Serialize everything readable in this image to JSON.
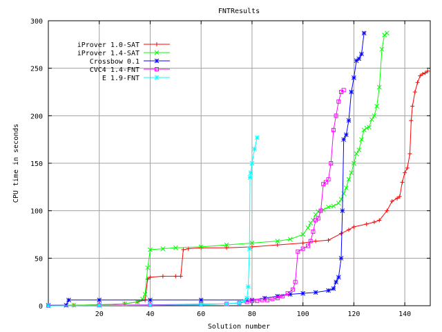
{
  "chart_data": {
    "type": "line",
    "title": "FNTResults",
    "xlabel": "Solution number",
    "ylabel": "CPU time in seconds",
    "xlim": [
      0,
      150
    ],
    "ylim": [
      0,
      300
    ],
    "xticks": [
      20,
      40,
      60,
      80,
      100,
      120,
      140
    ],
    "yticks": [
      0,
      50,
      100,
      150,
      200,
      250,
      300
    ],
    "grid": true,
    "legend_position": "top-left",
    "series": [
      {
        "name": "iProver 1.0-SAT",
        "color": "#ff0000",
        "marker": "plus",
        "x": [
          0,
          10,
          20,
          30,
          35,
          38,
          39,
          40,
          45,
          50,
          52,
          53,
          55,
          60,
          70,
          80,
          90,
          100,
          105,
          110,
          115,
          118,
          120,
          125,
          128,
          130,
          133,
          135,
          137,
          138,
          139,
          140,
          141,
          142,
          142.5,
          143,
          144,
          145,
          146,
          147,
          148,
          149
        ],
        "y": [
          0.3,
          0.5,
          1,
          2,
          4,
          6,
          28,
          30,
          31,
          31,
          31,
          59,
          60,
          61,
          61,
          62,
          64,
          66,
          68,
          69,
          76,
          80,
          83,
          86,
          88,
          90,
          100,
          110,
          113,
          115,
          130,
          140,
          145,
          160,
          195,
          210,
          225,
          235,
          242,
          244,
          245,
          247
        ]
      },
      {
        "name": "iProver 1.4-SAT",
        "color": "#00ff00",
        "marker": "cross",
        "x": [
          0,
          10,
          20,
          30,
          35,
          37,
          38,
          39,
          40,
          45,
          50,
          60,
          70,
          80,
          90,
          95,
          100,
          102,
          103,
          104,
          105,
          106,
          108,
          110,
          112,
          114,
          115,
          116,
          117,
          118,
          119,
          120,
          121,
          122,
          123,
          124,
          125,
          126,
          127,
          128,
          129,
          130,
          131,
          132,
          133
        ],
        "y": [
          0.3,
          0.5,
          1,
          2,
          4,
          7,
          12,
          40,
          59,
          60,
          61,
          62,
          64,
          66,
          68,
          70,
          75,
          82,
          87,
          90,
          96,
          99,
          101,
          104,
          105,
          108,
          112,
          118,
          124,
          133,
          140,
          150,
          160,
          164,
          175,
          185,
          187,
          188,
          196,
          200,
          210,
          230,
          270,
          285,
          287
        ]
      },
      {
        "name": "Crossbow 0.1",
        "color": "#0000ff",
        "marker": "star",
        "x": [
          0,
          7,
          8,
          20,
          40,
          60,
          78,
          80,
          85,
          90,
          95,
          100,
          105,
          110,
          112,
          113,
          114,
          115,
          115.5,
          116,
          117,
          118,
          119,
          120,
          121,
          122,
          123,
          124
        ],
        "y": [
          0.5,
          0.5,
          6,
          6,
          6,
          6,
          6,
          6,
          8,
          10,
          12,
          13,
          14,
          16,
          18,
          25,
          30,
          50,
          100,
          175,
          180,
          195,
          225,
          240,
          258,
          260,
          265,
          287
        ]
      },
      {
        "name": "CVC4 1.4-FNT",
        "color": "#ff00ff",
        "marker": "square",
        "x": [
          0,
          20,
          40,
          60,
          70,
          75,
          78,
          80,
          82,
          84,
          86,
          88,
          90,
          92,
          94,
          96,
          97,
          98,
          100,
          102,
          103,
          104,
          105,
          106,
          107,
          108,
          109,
          110,
          111,
          112,
          113,
          114,
          115,
          116
        ],
        "y": [
          0,
          0.5,
          1,
          1.5,
          2,
          3,
          4,
          5,
          5,
          6,
          6,
          7,
          8,
          10,
          13,
          17,
          25,
          57,
          60,
          63,
          68,
          78,
          90,
          92,
          100,
          128,
          130,
          133,
          150,
          185,
          200,
          215,
          225,
          227
        ]
      },
      {
        "name": "E 1.9-FNT",
        "color": "#00ffff",
        "marker": "asterisk",
        "x": [
          0,
          20,
          40,
          60,
          70,
          75,
          77,
          78,
          78.5,
          79,
          79.2,
          79.5,
          80,
          81,
          82
        ],
        "y": [
          0,
          0.3,
          0.6,
          1,
          2,
          3,
          5,
          8,
          20,
          60,
          135,
          140,
          150,
          165,
          177
        ]
      }
    ]
  }
}
